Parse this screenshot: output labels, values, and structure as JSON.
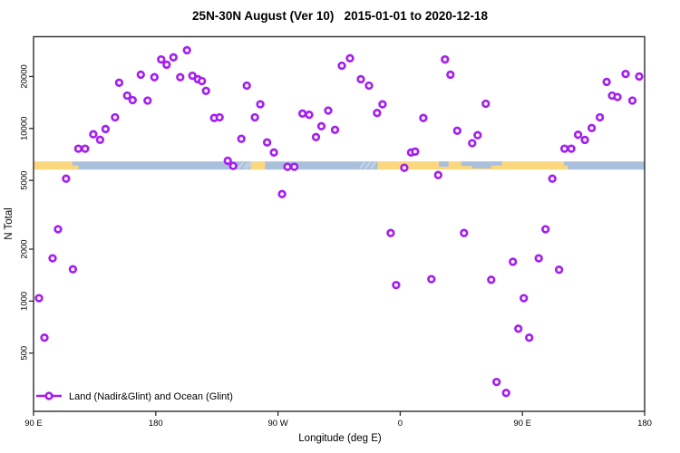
{
  "colors": {
    "point": "#a51ef0",
    "point_fill": "#ffffff",
    "land": "#fbd77e",
    "ocean": "#a9c0dc",
    "coast_mark": "#c6d5e9",
    "axis": "#2e2e2e"
  },
  "legend": {
    "label": "Land (Nadir&Glint) and Ocean (Glint)"
  },
  "chart_data": {
    "type": "scatter",
    "title": "25N-30N August (Ver 10)   2015-01-01 to 2020-12-18",
    "xlabel": "Longitude (deg E)",
    "ylabel": "N Total",
    "x_axis": {
      "range_deg": [
        90,
        540
      ],
      "ticks": [
        {
          "deg": 90,
          "label": "90 E"
        },
        {
          "deg": 180,
          "label": "180"
        },
        {
          "deg": 270,
          "label": "90 W"
        },
        {
          "deg": 360,
          "label": "0"
        },
        {
          "deg": 450,
          "label": "90 E"
        },
        {
          "deg": 540,
          "label": "180"
        }
      ]
    },
    "y_axis": {
      "scale": "log",
      "range": [
        230,
        34000
      ],
      "ticks": [
        {
          "value": 500,
          "label": "500"
        },
        {
          "value": 1000,
          "label": "1000"
        },
        {
          "value": 2000,
          "label": "2000"
        },
        {
          "value": 5000,
          "label": "5000"
        },
        {
          "value": 10000,
          "label": "10000"
        },
        {
          "value": 20000,
          "label": "20000"
        }
      ]
    },
    "band": {
      "value_from": 5780,
      "value_to": 6440,
      "segments": [
        {
          "type": "land",
          "from": 90,
          "to": 118.5
        },
        {
          "type": "ocean",
          "from": 118.5,
          "to": 250
        },
        {
          "type": "land",
          "from": 250,
          "to": 260.5
        },
        {
          "type": "ocean",
          "from": 260.5,
          "to": 343.5
        },
        {
          "type": "land",
          "from": 343.5,
          "to": 480.5
        },
        {
          "type": "ocean",
          "from": 480.5,
          "to": 540
        }
      ],
      "details": [
        {
          "type": "land",
          "from": 118.5,
          "to": 123,
          "top": 0.5,
          "bottom": 1
        },
        {
          "type": "ocean",
          "from": 388.5,
          "to": 395.5,
          "top": 0,
          "bottom": 0.65
        },
        {
          "type": "ocean",
          "from": 405,
          "to": 413,
          "top": 0,
          "bottom": 0.55
        },
        {
          "type": "ocean",
          "from": 413,
          "to": 427,
          "top": 0,
          "bottom": 0.85
        },
        {
          "type": "ocean",
          "from": 427,
          "to": 435,
          "top": 0,
          "bottom": 0.5
        },
        {
          "type": "land",
          "from": 480.5,
          "to": 483.5,
          "top": 0.5,
          "bottom": 1
        }
      ],
      "coast_marks": [
        {
          "deg": 242.5
        },
        {
          "deg": 246.5
        },
        {
          "deg": 249
        },
        {
          "deg": 332
        },
        {
          "deg": 336
        },
        {
          "deg": 340
        }
      ]
    },
    "series": [
      {
        "name": "Land (Nadir&Glint) and Ocean (Glint)",
        "marker": "open-circle",
        "points": [
          [
            94,
            1040
          ],
          [
            98,
            614
          ],
          [
            104,
            1770
          ],
          [
            108,
            2610
          ],
          [
            114,
            5120
          ],
          [
            119,
            1530
          ],
          [
            123,
            7640
          ],
          [
            128,
            7640
          ],
          [
            134,
            9250
          ],
          [
            139,
            8600
          ],
          [
            143,
            9930
          ],
          [
            150,
            11600
          ],
          [
            153,
            18400
          ],
          [
            159,
            15500
          ],
          [
            163,
            14600
          ],
          [
            169,
            20500
          ],
          [
            174,
            14500
          ],
          [
            179,
            19800
          ],
          [
            184,
            25100
          ],
          [
            188,
            23400
          ],
          [
            193,
            25800
          ],
          [
            198,
            19800
          ],
          [
            203,
            28400
          ],
          [
            207,
            20200
          ],
          [
            211,
            19300
          ],
          [
            214,
            18800
          ],
          [
            217,
            16500
          ],
          [
            223,
            11500
          ],
          [
            227,
            11600
          ],
          [
            233,
            6500
          ],
          [
            237,
            6070
          ],
          [
            243,
            8710
          ],
          [
            247,
            17700
          ],
          [
            253,
            11600
          ],
          [
            257,
            13800
          ],
          [
            262,
            8300
          ],
          [
            267,
            7260
          ],
          [
            273,
            4170
          ],
          [
            277,
            6000
          ],
          [
            282,
            6000
          ],
          [
            288,
            12200
          ],
          [
            293,
            12000
          ],
          [
            298,
            8910
          ],
          [
            302,
            10300
          ],
          [
            307,
            12700
          ],
          [
            312,
            9820
          ],
          [
            317,
            23100
          ],
          [
            323,
            25500
          ],
          [
            331,
            19300
          ],
          [
            337,
            17700
          ],
          [
            343,
            12300
          ],
          [
            347,
            13800
          ],
          [
            353,
            2480
          ],
          [
            357,
            1240
          ],
          [
            363,
            5920
          ],
          [
            368,
            7260
          ],
          [
            371,
            7350
          ],
          [
            377,
            11500
          ],
          [
            383,
            1340
          ],
          [
            388,
            5370
          ],
          [
            393,
            25100
          ],
          [
            397,
            20500
          ],
          [
            402,
            9700
          ],
          [
            407,
            2480
          ],
          [
            413,
            8220
          ],
          [
            417,
            9140
          ],
          [
            423,
            13900
          ],
          [
            427,
            1330
          ],
          [
            431,
            340
          ],
          [
            438,
            294
          ],
          [
            443,
            1690
          ],
          [
            447,
            692
          ],
          [
            451,
            1040
          ],
          [
            455,
            614
          ],
          [
            462,
            1770
          ],
          [
            467,
            2610
          ],
          [
            472,
            5120
          ],
          [
            477,
            1520
          ],
          [
            481,
            7640
          ],
          [
            486,
            7640
          ],
          [
            491,
            9200
          ],
          [
            496,
            8590
          ],
          [
            501,
            10060
          ],
          [
            507,
            11600
          ],
          [
            512,
            18600
          ],
          [
            516,
            15500
          ],
          [
            520,
            15200
          ],
          [
            526,
            20700
          ],
          [
            531,
            14500
          ],
          [
            536,
            20000
          ]
        ]
      }
    ]
  }
}
